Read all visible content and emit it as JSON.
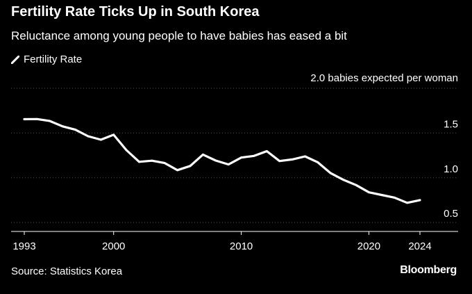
{
  "title": "Fertility Rate Ticks Up in South Korea",
  "subtitle": "Reluctance among young people to have babies has eased a bit",
  "source": "Source: Statistics Korea",
  "brand": "Bloomberg",
  "colors": {
    "background": "#000000",
    "line": "#ffffff",
    "grid": "#555555"
  },
  "chart_data": {
    "type": "line",
    "title": "Fertility Rate Ticks Up in South Korea",
    "subtitle": "Reluctance among young people to have babies has eased a bit",
    "xlim": [
      1993,
      2025
    ],
    "ylim": [
      0.4,
      2.0
    ],
    "x_ticks": [
      1993,
      2000,
      2010,
      2020,
      2024
    ],
    "x_tick_labels": [
      "1993",
      "2000",
      "2010",
      "2020",
      "2024"
    ],
    "y_ticks": [
      0.5,
      1.0,
      1.5,
      2.0
    ],
    "y_tick_labels": [
      "0.5",
      "1.0",
      "1.5",
      ""
    ],
    "grid": true,
    "legend_position": "top-left",
    "annotations": [
      {
        "y": 2.0,
        "text": "2.0 babies expected per woman"
      }
    ],
    "series": [
      {
        "name": "Fertility Rate",
        "x": [
          1993,
          1994,
          1995,
          1996,
          1997,
          1998,
          1999,
          2000,
          2001,
          2002,
          2003,
          2004,
          2005,
          2006,
          2007,
          2008,
          2009,
          2010,
          2011,
          2012,
          2013,
          2014,
          2015,
          2016,
          2017,
          2018,
          2019,
          2020,
          2021,
          2022,
          2023,
          2024
        ],
        "values": [
          1.654,
          1.656,
          1.634,
          1.574,
          1.537,
          1.464,
          1.425,
          1.48,
          1.309,
          1.178,
          1.191,
          1.164,
          1.085,
          1.132,
          1.259,
          1.192,
          1.149,
          1.226,
          1.244,
          1.297,
          1.187,
          1.205,
          1.239,
          1.172,
          1.052,
          0.977,
          0.918,
          0.837,
          0.808,
          0.778,
          0.72,
          0.75
        ]
      }
    ]
  }
}
